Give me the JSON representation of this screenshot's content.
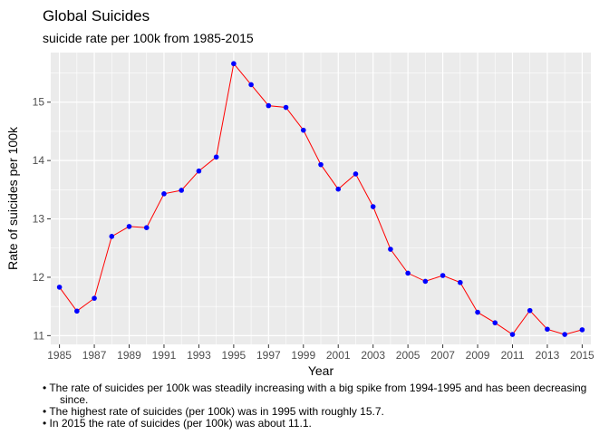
{
  "chart_data": {
    "type": "line",
    "title": "Global Suicides",
    "subtitle": "suicide rate per 100k from 1985-2015",
    "xlabel": "Year",
    "ylabel": "Rate of suicides per 100k",
    "x": [
      1985,
      1986,
      1987,
      1988,
      1989,
      1990,
      1991,
      1992,
      1993,
      1994,
      1995,
      1996,
      1997,
      1998,
      1999,
      2000,
      2001,
      2002,
      2003,
      2004,
      2005,
      2006,
      2007,
      2008,
      2009,
      2010,
      2011,
      2012,
      2013,
      2014,
      2015
    ],
    "values": [
      11.83,
      11.42,
      11.64,
      12.7,
      12.87,
      12.85,
      13.43,
      13.49,
      13.82,
      14.06,
      15.66,
      15.3,
      14.94,
      14.91,
      14.52,
      13.93,
      13.51,
      13.77,
      13.21,
      12.48,
      12.07,
      11.93,
      12.03,
      11.91,
      11.4,
      11.22,
      11.02,
      11.43,
      11.11,
      11.02,
      11.1
    ],
    "xticks": [
      "1985",
      "1987",
      "1989",
      "1991",
      "1993",
      "1995",
      "1997",
      "1999",
      "2001",
      "2003",
      "2005",
      "2007",
      "2009",
      "2011",
      "2013",
      "2015"
    ],
    "yticks": [
      "11",
      "12",
      "13",
      "14",
      "15"
    ],
    "xlim": [
      1984.5,
      2015.5
    ],
    "ylim": [
      10.85,
      15.85
    ],
    "grid": true,
    "line_color": "#ff0000",
    "point_color": "#0000ff",
    "panel_color": "#ebebeb",
    "caption": [
      "• The rate of suicides per 100k was steadily increasing with a big spike from 1994-1995 and has been decreasing",
      "since.",
      "• The highest rate of suicides (per 100k) was in 1995 with roughly 15.7.",
      "• In 2015 the rate of suicides (per 100k) was about 11.1."
    ]
  }
}
